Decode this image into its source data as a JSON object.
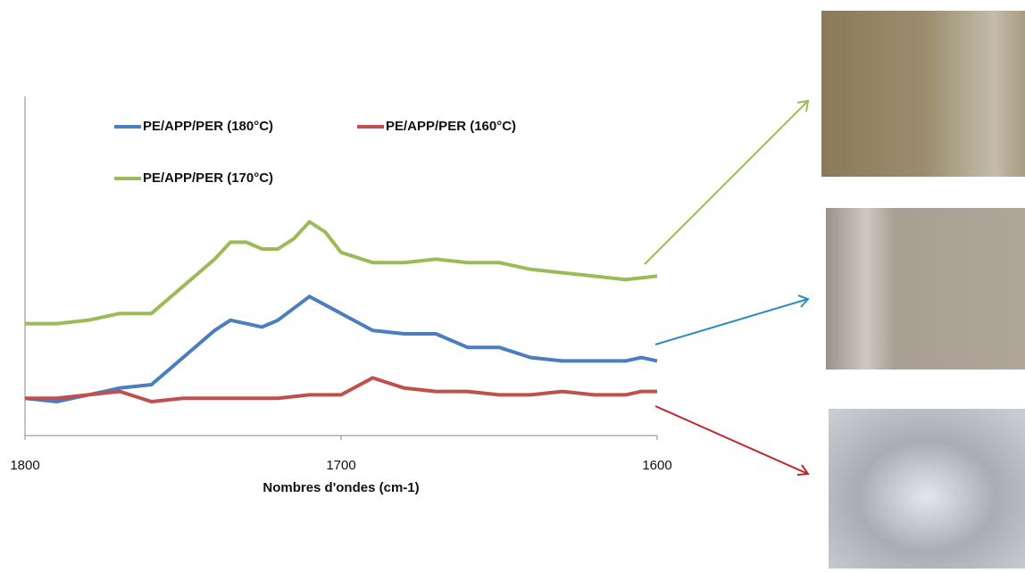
{
  "chart_data": {
    "type": "line",
    "xlabel": "Nombres d'ondes (cm-1)",
    "xlim": [
      1800,
      1600
    ],
    "xticks": [
      1800,
      1700,
      1600
    ],
    "ylim": [
      0,
      100
    ],
    "series": [
      {
        "name": "PE/APP/PER (180°C)",
        "color": "#4a7ebf",
        "x": [
          1800,
          1790,
          1780,
          1770,
          1760,
          1750,
          1740,
          1735,
          1730,
          1725,
          1720,
          1710,
          1700,
          1690,
          1680,
          1670,
          1660,
          1650,
          1640,
          1630,
          1620,
          1610,
          1605,
          1600
        ],
        "values": [
          11,
          10,
          12,
          14,
          15,
          23,
          31,
          34,
          33,
          32,
          34,
          41,
          36,
          31,
          30,
          30,
          26,
          26,
          23,
          22,
          22,
          22,
          23,
          22
        ]
      },
      {
        "name": "PE/APP/PER (160°C)",
        "color": "#c0504d",
        "x": [
          1800,
          1790,
          1780,
          1770,
          1760,
          1750,
          1740,
          1730,
          1720,
          1710,
          1700,
          1690,
          1680,
          1670,
          1660,
          1650,
          1640,
          1630,
          1620,
          1610,
          1605,
          1600
        ],
        "values": [
          11,
          11,
          12,
          13,
          10,
          11,
          11,
          11,
          11,
          12,
          12,
          17,
          14,
          13,
          13,
          12,
          12,
          13,
          12,
          12,
          13,
          13
        ]
      },
      {
        "name": "PE/APP/PER (170°C)",
        "color": "#9bbb59",
        "x": [
          1800,
          1790,
          1780,
          1770,
          1760,
          1750,
          1740,
          1735,
          1730,
          1725,
          1720,
          1715,
          1710,
          1705,
          1700,
          1690,
          1680,
          1670,
          1660,
          1650,
          1640,
          1630,
          1620,
          1610,
          1600
        ],
        "values": [
          33,
          33,
          34,
          36,
          36,
          44,
          52,
          57,
          57,
          55,
          55,
          58,
          63,
          60,
          54,
          51,
          51,
          52,
          51,
          51,
          49,
          48,
          47,
          46,
          47
        ]
      }
    ]
  }
}
